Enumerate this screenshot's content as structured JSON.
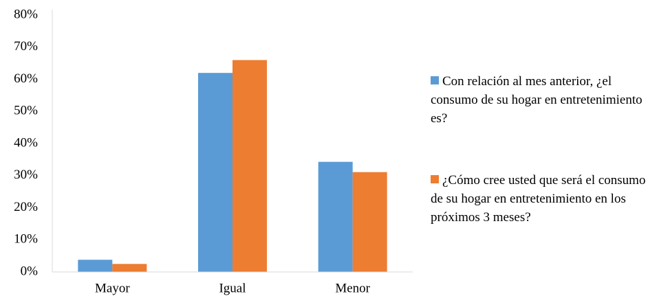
{
  "chart_data": {
    "type": "bar",
    "categories": [
      "Mayor",
      "Igual",
      "Menor"
    ],
    "series": [
      {
        "name": "Con relación al mes anterior, ¿el consumo de su hogar en entretenimiento es?",
        "color": "#5b9bd5",
        "values": [
          3.8,
          62,
          34.3
        ]
      },
      {
        "name": "¿Cómo cree usted que será el consumo de su hogar en entretenimiento en los próximos 3 meses?",
        "color": "#ed7d31",
        "values": [
          2.5,
          66,
          31.1
        ]
      }
    ],
    "ylim": [
      0,
      80
    ],
    "yticks": [
      {
        "value": 0,
        "label": "0%"
      },
      {
        "value": 10,
        "label": "10%"
      },
      {
        "value": 20,
        "label": "20%"
      },
      {
        "value": 30,
        "label": "30%"
      },
      {
        "value": 40,
        "label": "40%"
      },
      {
        "value": 50,
        "label": "50%"
      },
      {
        "value": 60,
        "label": "60%"
      },
      {
        "value": 70,
        "label": "70%"
      },
      {
        "value": 80,
        "label": "80%"
      }
    ],
    "grid": false,
    "legend_position": "right"
  }
}
